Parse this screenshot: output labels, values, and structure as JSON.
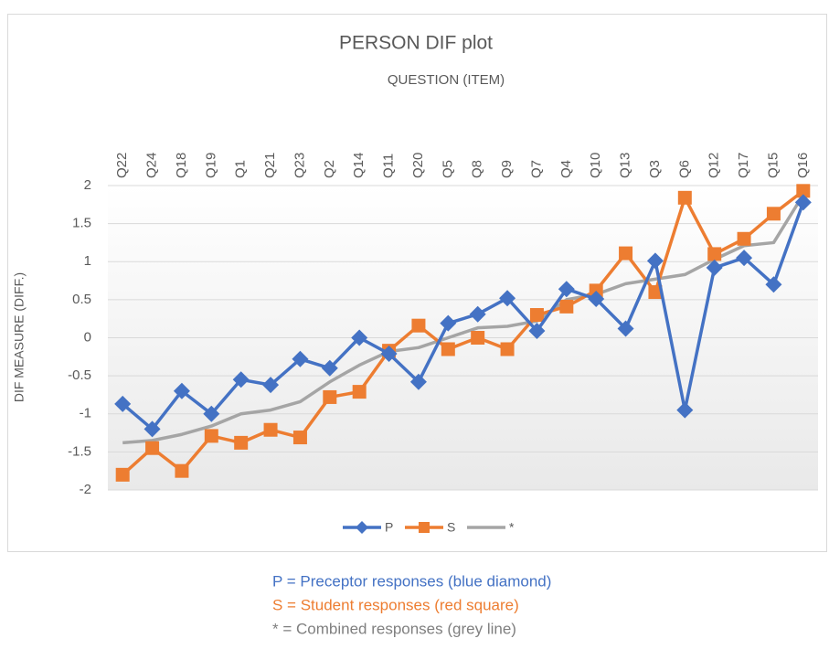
{
  "chart_data": {
    "type": "line",
    "title": "PERSON DIF plot",
    "subtitle": "QUESTION (ITEM)",
    "y_label": "DIF MEASURE (DIFF.)",
    "categories": [
      "Q22",
      "Q24",
      "Q18",
      "Q19",
      "Q1",
      "Q21",
      "Q23",
      "Q2",
      "Q14",
      "Q11",
      "Q20",
      "Q5",
      "Q8",
      "Q9",
      "Q7",
      "Q4",
      "Q10",
      "Q13",
      "Q3",
      "Q6",
      "Q12",
      "Q17",
      "Q15",
      "Q16"
    ],
    "series": [
      {
        "name": "P",
        "color": "#4472c4",
        "marker": "diamond",
        "values": [
          -0.87,
          -1.2,
          -0.7,
          -1.0,
          -0.55,
          -0.62,
          -0.28,
          -0.4,
          0,
          -0.21,
          -0.58,
          0.19,
          0.31,
          0.52,
          0.09,
          0.64,
          0.51,
          0.12,
          1.01,
          -0.95,
          0.92,
          1.05,
          0.7,
          1.78
        ]
      },
      {
        "name": "S",
        "color": "#ed7d31",
        "marker": "square",
        "values": [
          -1.8,
          -1.45,
          -1.75,
          -1.29,
          -1.38,
          -1.21,
          -1.31,
          -0.78,
          -0.71,
          -0.17,
          0.16,
          -0.15,
          0,
          -0.15,
          0.3,
          0.41,
          0.62,
          1.11,
          0.6,
          1.84,
          1.1,
          1.3,
          1.63,
          1.93
        ]
      },
      {
        "name": "*",
        "color": "#a5a5a5",
        "marker": "none",
        "values": [
          -1.38,
          -1.35,
          -1.27,
          -1.16,
          -1.0,
          -0.95,
          -0.84,
          -0.58,
          -0.36,
          -0.18,
          -0.13,
          0,
          0.13,
          0.15,
          0.22,
          0.5,
          0.57,
          0.71,
          0.77,
          0.83,
          1.03,
          1.21,
          1.25,
          1.88
        ]
      }
    ],
    "ylim": [
      -2,
      2
    ],
    "yticks": [
      2,
      1.5,
      1,
      0.5,
      0,
      -0.5,
      -1,
      -1.5,
      -2
    ],
    "grid": true,
    "legend": "bottom",
    "annotations": [
      {
        "text": "P = Preceptor responses (blue diamond)",
        "color": "#4472c4"
      },
      {
        "text": "S = Student responses (red square)",
        "color": "#ed7d31"
      },
      {
        "text": "* = Combined responses (grey line)",
        "color": "#7f7f7f"
      }
    ]
  }
}
